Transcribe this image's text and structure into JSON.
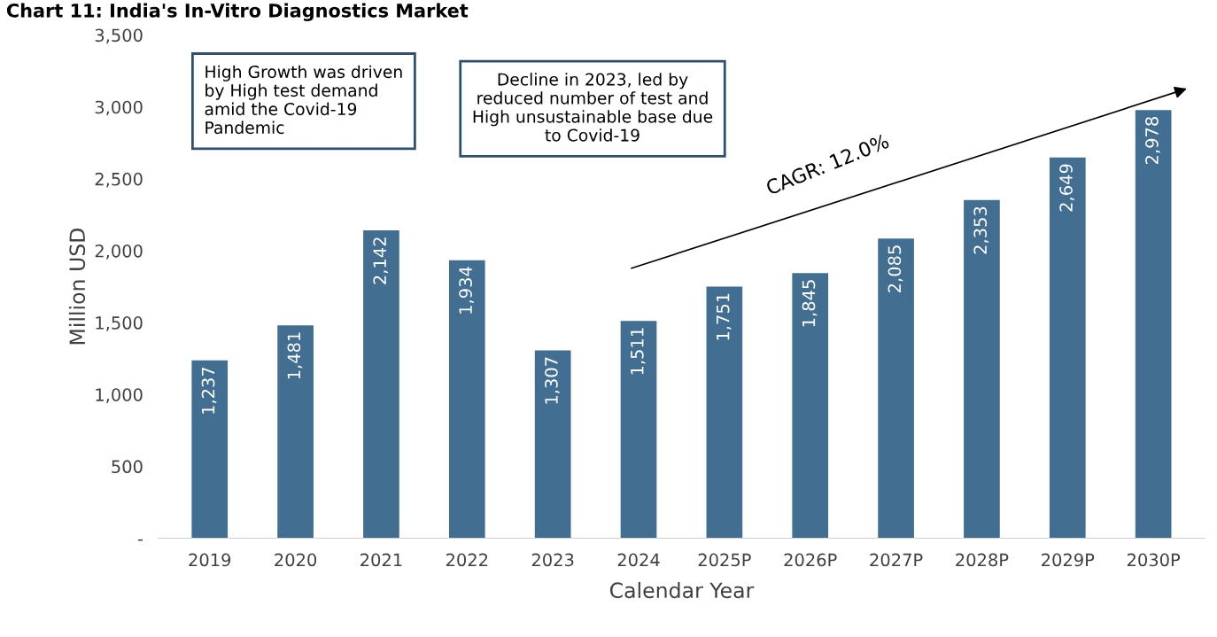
{
  "chart_data": {
    "type": "bar",
    "title": "Chart 11: India's In-Vitro Diagnostics Market",
    "xlabel": "Calendar Year",
    "ylabel": "Million USD",
    "categories": [
      "2019",
      "2020",
      "2021",
      "2022",
      "2023",
      "2024",
      "2025P",
      "2026P",
      "2027P",
      "2028P",
      "2029P",
      "2030P"
    ],
    "values": [
      1237,
      1481,
      2142,
      1934,
      1307,
      1511,
      1751,
      1845,
      2085,
      2353,
      2649,
      2978
    ],
    "value_labels": [
      "1,237",
      "1,481",
      "2,142",
      "1,934",
      "1,307",
      "1,511",
      "1,751",
      "1,845",
      "2,085",
      "2,353",
      "2,649",
      "2,978"
    ],
    "color": "#426e92",
    "ylim": [
      0,
      3500
    ],
    "yticks": [
      {
        "value": 0,
        "label": "-"
      },
      {
        "value": 500,
        "label": "500"
      },
      {
        "value": 1000,
        "label": "1,000"
      },
      {
        "value": 1500,
        "label": "1,500"
      },
      {
        "value": 2000,
        "label": "2,000"
      },
      {
        "value": 2500,
        "label": "2,500"
      },
      {
        "value": 3000,
        "label": "3,000"
      },
      {
        "value": 3500,
        "label": "3,500"
      }
    ],
    "grid": false,
    "annotations": [
      "High Growth was driven by High test demand amid the Covid-19 Pandemic",
      "Decline in 2023, led by reduced number of test and High unsustainable base due to Covid-19",
      "CAGR: 12.0%"
    ]
  }
}
